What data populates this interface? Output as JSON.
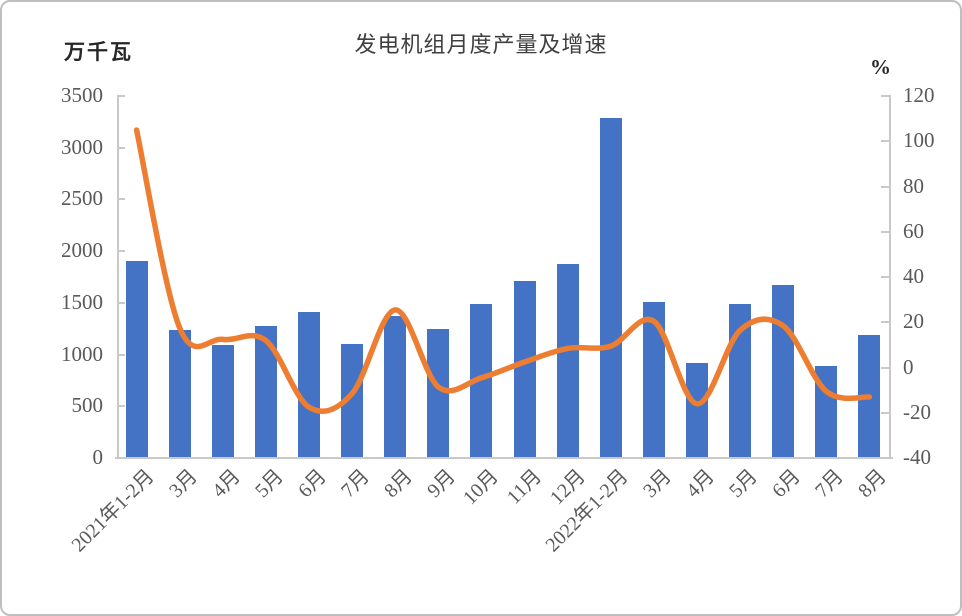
{
  "chart_data": {
    "type": "combo",
    "title": "发电机组月度产量及增速",
    "categories": [
      "2021年1-2月",
      "3月",
      "4月",
      "5月",
      "6月",
      "7月",
      "8月",
      "9月",
      "10月",
      "11月",
      "12月",
      "2022年1-2月",
      "3月",
      "4月",
      "5月",
      "6月",
      "7月",
      "8月"
    ],
    "series": [
      {
        "name": "产量",
        "type": "bar",
        "axis": "left",
        "unit": "万千瓦",
        "color": "#4472C4",
        "values": [
          1900,
          1230,
          1080,
          1270,
          1400,
          1090,
          1360,
          1240,
          1480,
          1700,
          1870,
          3280,
          1500,
          910,
          1480,
          1660,
          880,
          1180
        ]
      },
      {
        "name": "增速",
        "type": "line",
        "axis": "right",
        "unit": "%",
        "color": "#ED7D31",
        "values": [
          104.5,
          17,
          12,
          11.5,
          -18,
          -12,
          25,
          -9,
          -5,
          2,
          8,
          9,
          20,
          -16.5,
          16,
          18,
          -11,
          -13.5
        ]
      }
    ],
    "left_axis": {
      "label": "万千瓦",
      "min": 0,
      "max": 3500,
      "tick_step": 500,
      "tick_values": [
        3500,
        3000,
        2500,
        2000,
        1500,
        1000,
        500,
        0
      ]
    },
    "right_axis": {
      "label": "%",
      "min": -40,
      "max": 120,
      "tick_step": 20,
      "tick_values": [
        120,
        100,
        80,
        60,
        40,
        20,
        0,
        -20,
        -40
      ]
    },
    "grid": false,
    "legend": "none",
    "x_label_rotation": -45,
    "style": {
      "axis_color": "#c9c9c9",
      "text_color": "#595959",
      "title_color": "#3f3f3f",
      "line_width": 5.5,
      "smooth_line": true
    }
  }
}
